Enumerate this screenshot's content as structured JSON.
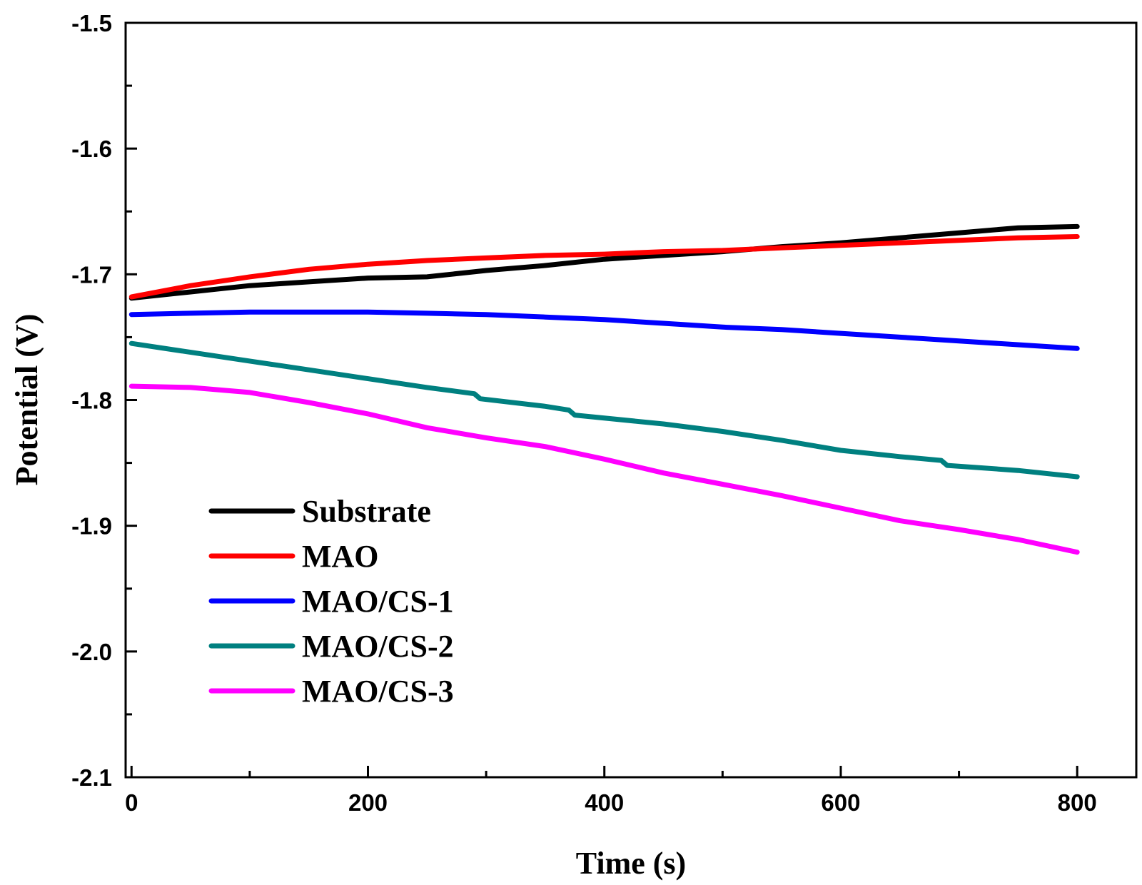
{
  "chart_data": {
    "type": "line",
    "title": "",
    "xlabel": "Time (s)",
    "ylabel": "Potential (V)",
    "xlim": [
      -5,
      850
    ],
    "ylim": [
      -2.1,
      -1.5
    ],
    "xticks": [
      0,
      200,
      400,
      600,
      800
    ],
    "xtick_labels": [
      "0",
      "200",
      "400",
      "600",
      "800"
    ],
    "xminor": [
      100,
      300,
      500,
      700
    ],
    "yticks": [
      -2.1,
      -2.0,
      -1.9,
      -1.8,
      -1.7,
      -1.6,
      -1.5
    ],
    "ytick_labels": [
      "-2.1",
      "-2.0",
      "-1.9",
      "-1.8",
      "-1.7",
      "-1.6",
      "-1.5"
    ],
    "yminor": [
      -2.05,
      -1.95,
      -1.85,
      -1.75,
      -1.65,
      -1.55
    ],
    "grid": false,
    "legend_position": "bottom-left",
    "series": [
      {
        "name": "Substrate",
        "color": "#000000",
        "x": [
          0,
          50,
          100,
          150,
          200,
          250,
          300,
          350,
          400,
          450,
          500,
          550,
          600,
          650,
          700,
          750,
          800
        ],
        "y": [
          -1.719,
          -1.714,
          -1.709,
          -1.706,
          -1.703,
          -1.702,
          -1.697,
          -1.693,
          -1.688,
          -1.685,
          -1.682,
          -1.678,
          -1.675,
          -1.671,
          -1.667,
          -1.663,
          -1.662
        ]
      },
      {
        "name": "MAO",
        "color": "#ff0000",
        "x": [
          0,
          50,
          100,
          150,
          200,
          250,
          300,
          350,
          400,
          450,
          500,
          550,
          600,
          650,
          700,
          750,
          800
        ],
        "y": [
          -1.718,
          -1.709,
          -1.702,
          -1.696,
          -1.692,
          -1.689,
          -1.687,
          -1.685,
          -1.684,
          -1.682,
          -1.681,
          -1.679,
          -1.677,
          -1.675,
          -1.673,
          -1.671,
          -1.67
        ]
      },
      {
        "name": "MAO/CS-1",
        "color": "#0000ff",
        "x": [
          0,
          50,
          100,
          150,
          200,
          250,
          300,
          350,
          400,
          450,
          500,
          550,
          600,
          650,
          700,
          750,
          800
        ],
        "y": [
          -1.732,
          -1.731,
          -1.73,
          -1.73,
          -1.73,
          -1.731,
          -1.732,
          -1.734,
          -1.736,
          -1.739,
          -1.742,
          -1.744,
          -1.747,
          -1.75,
          -1.753,
          -1.756,
          -1.759
        ]
      },
      {
        "name": "MAO/CS-2",
        "color": "#008080",
        "x": [
          0,
          50,
          100,
          150,
          200,
          250,
          290,
          295,
          350,
          370,
          375,
          450,
          500,
          550,
          600,
          650,
          685,
          690,
          750,
          800
        ],
        "y": [
          -1.755,
          -1.762,
          -1.769,
          -1.776,
          -1.783,
          -1.79,
          -1.795,
          -1.799,
          -1.805,
          -1.808,
          -1.812,
          -1.819,
          -1.825,
          -1.832,
          -1.84,
          -1.845,
          -1.848,
          -1.852,
          -1.856,
          -1.861
        ]
      },
      {
        "name": "MAO/CS-3",
        "color": "#ff00ff",
        "x": [
          0,
          50,
          100,
          150,
          200,
          250,
          300,
          350,
          400,
          450,
          500,
          550,
          600,
          650,
          700,
          750,
          800
        ],
        "y": [
          -1.789,
          -1.79,
          -1.794,
          -1.802,
          -1.811,
          -1.822,
          -1.83,
          -1.837,
          -1.847,
          -1.858,
          -1.867,
          -1.876,
          -1.886,
          -1.896,
          -1.903,
          -1.911,
          -1.921
        ]
      }
    ]
  }
}
